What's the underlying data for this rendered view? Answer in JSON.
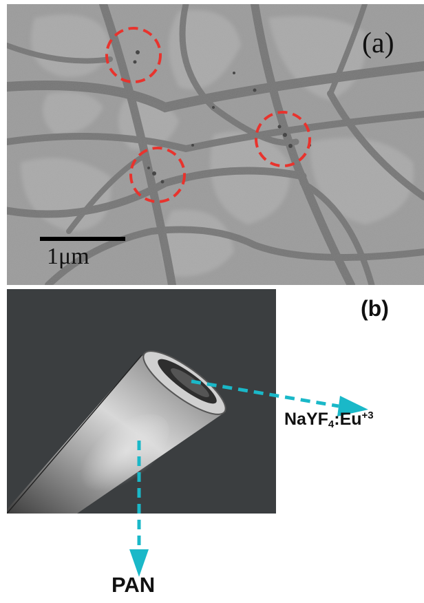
{
  "panel_a": {
    "label": "(a)",
    "scale_bar_label": "1μm",
    "marker_color": "#e8332d"
  },
  "panel_b": {
    "label": "(b)",
    "core_label": {
      "main": "NaYF",
      "subscript": "4",
      "mid": ":Eu",
      "superscript": "+3"
    },
    "shell_label": "PAN",
    "arrow_color": "#1ab8c8",
    "background_color": "#3b3e40"
  }
}
